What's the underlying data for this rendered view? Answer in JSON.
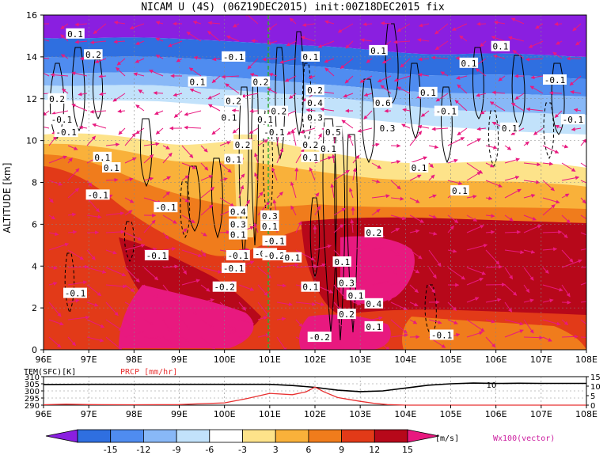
{
  "chart_data": [
    {
      "type": "heatmap",
      "title": "NICAM U (4S) (06Z19DEC2015) init:00Z18DEC2015 fix",
      "ylabel": "ALTITUDE [km]",
      "xlim": [
        96,
        108
      ],
      "ylim": [
        0,
        16
      ],
      "x_ticks": [
        "96E",
        "97E",
        "98E",
        "99E",
        "100E",
        "101E",
        "102E",
        "103E",
        "104E",
        "105E",
        "106E",
        "107E",
        "108E"
      ],
      "y_ticks": [
        "0",
        "2",
        "4",
        "6",
        "8",
        "10",
        "12",
        "14",
        "16"
      ],
      "grid": true,
      "colorbar": {
        "unit": "[m/s]",
        "levels": [
          "-15",
          "-12",
          "-9",
          "-6",
          "-3",
          "3",
          "6",
          "9",
          "12",
          "15"
        ],
        "colors": [
          "#8a1fe0",
          "#2f6fe0",
          "#4f8cf0",
          "#88b8f7",
          "#c2e2fb",
          "#ffffff",
          "#fde38a",
          "#f9b13a",
          "#f07c1c",
          "#e23a18",
          "#b7081a",
          "#e8197f"
        ]
      },
      "vector_label": "Wx100(vector)",
      "contour_labels": [
        {
          "x": 96.7,
          "y": 15.1,
          "text": "0.1"
        },
        {
          "x": 97.1,
          "y": 14.1,
          "text": "0.2"
        },
        {
          "x": 96.3,
          "y": 12.0,
          "text": "0.2"
        },
        {
          "x": 96.4,
          "y": 11.0,
          "text": "-0.1"
        },
        {
          "x": 96.5,
          "y": 10.4,
          "text": "-0.1"
        },
        {
          "x": 97.3,
          "y": 9.2,
          "text": "0.1"
        },
        {
          "x": 97.5,
          "y": 8.7,
          "text": "0.1"
        },
        {
          "x": 97.2,
          "y": 7.4,
          "text": "-0.1"
        },
        {
          "x": 98.7,
          "y": 6.8,
          "text": "-0.1"
        },
        {
          "x": 98.5,
          "y": 4.5,
          "text": "-0.1"
        },
        {
          "x": 96.7,
          "y": 2.7,
          "text": "-0.1"
        },
        {
          "x": 99.4,
          "y": 12.8,
          "text": "0.1"
        },
        {
          "x": 100.2,
          "y": 14.0,
          "text": "-0.1"
        },
        {
          "x": 100.2,
          "y": 11.9,
          "text": "0.2"
        },
        {
          "x": 100.1,
          "y": 11.1,
          "text": "0.1"
        },
        {
          "x": 100.8,
          "y": 12.8,
          "text": "0.2"
        },
        {
          "x": 100.9,
          "y": 11.0,
          "text": "0.1"
        },
        {
          "x": 101.2,
          "y": 11.4,
          "text": "0.2"
        },
        {
          "x": 101.1,
          "y": 10.4,
          "text": "-0.1"
        },
        {
          "x": 100.4,
          "y": 9.8,
          "text": "0.2"
        },
        {
          "x": 100.2,
          "y": 9.1,
          "text": "0.1"
        },
        {
          "x": 100.3,
          "y": 6.6,
          "text": "0.4"
        },
        {
          "x": 100.3,
          "y": 6.0,
          "text": "0.3"
        },
        {
          "x": 101.0,
          "y": 6.4,
          "text": "0.3"
        },
        {
          "x": 100.3,
          "y": 5.5,
          "text": "0.1"
        },
        {
          "x": 101.0,
          "y": 5.9,
          "text": "0.1"
        },
        {
          "x": 101.1,
          "y": 5.2,
          "text": "-0.1"
        },
        {
          "x": 100.3,
          "y": 4.5,
          "text": "-0.1"
        },
        {
          "x": 100.9,
          "y": 4.6,
          "text": "-0.2"
        },
        {
          "x": 101.1,
          "y": 4.5,
          "text": "-0.2"
        },
        {
          "x": 101.5,
          "y": 4.4,
          "text": "0.1"
        },
        {
          "x": 100.2,
          "y": 3.9,
          "text": "-0.1"
        },
        {
          "x": 100.0,
          "y": 3.0,
          "text": "-0.2"
        },
        {
          "x": 101.9,
          "y": 3.0,
          "text": "0.1"
        },
        {
          "x": 101.9,
          "y": 14.0,
          "text": "0.1"
        },
        {
          "x": 102.0,
          "y": 12.4,
          "text": "0.2"
        },
        {
          "x": 102.0,
          "y": 11.8,
          "text": "0.4"
        },
        {
          "x": 102.0,
          "y": 11.1,
          "text": "0.3"
        },
        {
          "x": 102.4,
          "y": 10.4,
          "text": "0.5"
        },
        {
          "x": 101.9,
          "y": 9.8,
          "text": "0.2"
        },
        {
          "x": 102.3,
          "y": 9.6,
          "text": "0.1"
        },
        {
          "x": 101.9,
          "y": 9.2,
          "text": "0.1"
        },
        {
          "x": 103.3,
          "y": 5.6,
          "text": "0.2"
        },
        {
          "x": 102.6,
          "y": 4.2,
          "text": "0.1"
        },
        {
          "x": 102.7,
          "y": 3.2,
          "text": "0.3"
        },
        {
          "x": 102.9,
          "y": 2.6,
          "text": "0.1"
        },
        {
          "x": 103.3,
          "y": 2.2,
          "text": "0.4"
        },
        {
          "x": 102.7,
          "y": 1.7,
          "text": "0.2"
        },
        {
          "x": 103.3,
          "y": 1.1,
          "text": "0.1"
        },
        {
          "x": 102.1,
          "y": 0.6,
          "text": "-0.2"
        },
        {
          "x": 103.4,
          "y": 14.3,
          "text": "0.1"
        },
        {
          "x": 103.5,
          "y": 11.8,
          "text": "0.6"
        },
        {
          "x": 103.6,
          "y": 10.6,
          "text": "0.3"
        },
        {
          "x": 104.3,
          "y": 8.7,
          "text": "0.1"
        },
        {
          "x": 104.5,
          "y": 12.3,
          "text": "0.1"
        },
        {
          "x": 104.9,
          "y": 11.4,
          "text": "-0.1"
        },
        {
          "x": 105.4,
          "y": 13.7,
          "text": "0.1"
        },
        {
          "x": 106.1,
          "y": 14.5,
          "text": "0.1"
        },
        {
          "x": 106.3,
          "y": 10.6,
          "text": "0.1"
        },
        {
          "x": 107.3,
          "y": 12.9,
          "text": "-0.1"
        },
        {
          "x": 107.7,
          "y": 11.0,
          "text": "-0.1"
        },
        {
          "x": 105.2,
          "y": 7.6,
          "text": "0.1"
        },
        {
          "x": 104.8,
          "y": 0.7,
          "text": "-0.1"
        }
      ]
    },
    {
      "type": "line",
      "xlim": [
        96,
        108
      ],
      "x_ticks": [
        "96E",
        "97E",
        "98E",
        "99E",
        "100E",
        "101E",
        "102E",
        "103E",
        "104E",
        "105E",
        "106E",
        "107E",
        "108E"
      ],
      "left_axis_title": "TEM(SFC)[K]",
      "right_axis_title": "PRCP [mm/hr]",
      "left_ticks": [
        "310",
        "305",
        "300",
        "295",
        "290"
      ],
      "right_ticks": [
        "15",
        "10",
        "5",
        "0"
      ],
      "left_ylim": [
        290,
        310
      ],
      "right_ylim": [
        0,
        15
      ],
      "annotation": "10",
      "series": [
        {
          "name": "TEM(SFC)[K]",
          "color": "#000000",
          "x": [
            96,
            97,
            98,
            99,
            100,
            101,
            101.5,
            102,
            102.5,
            103,
            103.5,
            104,
            104.5,
            105,
            105.5,
            106,
            106.5,
            107,
            108
          ],
          "y": [
            304.5,
            304.6,
            304.6,
            304.6,
            304.6,
            304.6,
            303.8,
            302.5,
            300.5,
            299.5,
            300.0,
            302.0,
            304.0,
            305.0,
            305.5,
            305.2,
            305.4,
            305.3,
            305.3
          ]
        },
        {
          "name": "PRCP [mm/hr]",
          "color": "#e83030",
          "x": [
            96,
            96.5,
            97,
            98,
            99,
            99.5,
            100,
            100.5,
            101,
            101.5,
            101.8,
            102,
            102.2,
            102.5,
            103,
            103.3,
            103.6,
            104,
            108
          ],
          "y": [
            0.2,
            0.5,
            0.3,
            0.2,
            0.3,
            0.8,
            1.2,
            3.5,
            6.2,
            5.5,
            7.0,
            9.5,
            7.0,
            4.0,
            2.0,
            1.0,
            0.3,
            0.0,
            0.0
          ]
        }
      ]
    }
  ]
}
